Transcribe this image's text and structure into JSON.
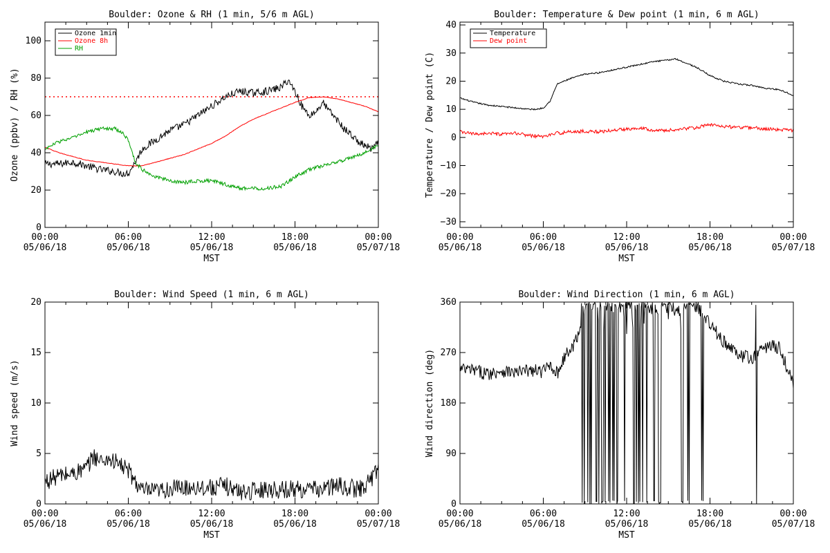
{
  "figure_title": "",
  "chart_data": [
    {
      "id": "ozone-rh",
      "type": "line",
      "title": "Boulder: Ozone & RH (1 min, 5/6 m AGL)",
      "xlabel": "MST",
      "ylabel": "Ozone (ppbv) / RH (%)",
      "ylim": [
        0,
        110
      ],
      "yticks": [
        0,
        20,
        40,
        60,
        80,
        100
      ],
      "ytick_labels": [
        "0",
        "20",
        "40",
        "60",
        "80",
        "100"
      ],
      "xlim": [
        0,
        24
      ],
      "xticks": [
        0,
        6,
        12,
        18,
        24
      ],
      "xtick_labels": [
        [
          "00:00",
          "05/06/18"
        ],
        [
          "06:00",
          "05/06/18"
        ],
        [
          "12:00",
          "05/06/18"
        ],
        [
          "18:00",
          "05/06/18"
        ],
        [
          "00:00",
          "05/07/18"
        ]
      ],
      "x_minor_step": 1.5,
      "grid": false,
      "legend_position": "top-left",
      "reference_lines": [
        {
          "y": 70,
          "color": "#ff0000",
          "style": "dotted"
        }
      ],
      "series": [
        {
          "name": "Ozone 1min",
          "color": "#000000",
          "x": [
            0,
            1,
            2,
            3,
            4,
            5,
            5.5,
            6,
            6.5,
            7,
            8,
            9,
            10,
            11,
            12,
            13,
            14,
            15,
            16,
            17,
            17.5,
            18,
            18.5,
            19,
            19.5,
            20,
            20.5,
            21,
            21.5,
            22,
            22.5,
            23,
            23.5,
            24
          ],
          "y": [
            34,
            34,
            35,
            33,
            31,
            30,
            29,
            29,
            35,
            42,
            47,
            52,
            55,
            60,
            65,
            70,
            73,
            72,
            73,
            75,
            79,
            73,
            65,
            60,
            62,
            67,
            62,
            58,
            53,
            50,
            46,
            44,
            42,
            45
          ]
        },
        {
          "name": "Ozone 8h",
          "color": "#ff0000",
          "x": [
            0,
            1,
            2,
            3,
            4,
            5,
            6,
            7,
            8,
            9,
            10,
            11,
            12,
            13,
            14,
            15,
            16,
            17,
            18,
            19,
            20,
            21,
            22,
            23,
            24
          ],
          "y": [
            43,
            40,
            38,
            36,
            35,
            34,
            33,
            33,
            35,
            37,
            39,
            42,
            45,
            49,
            54,
            58,
            61,
            64,
            67,
            69.5,
            70,
            69,
            67,
            65,
            62
          ]
        },
        {
          "name": "RH",
          "color": "#00a000",
          "x": [
            0,
            1,
            2,
            3,
            4,
            5,
            5.5,
            6,
            6.5,
            7,
            8,
            9,
            10,
            11,
            12,
            13,
            14,
            15,
            16,
            17,
            18,
            19,
            20,
            21,
            22,
            23,
            24
          ],
          "y": [
            42,
            46,
            48,
            51,
            53,
            53,
            51,
            47,
            35,
            31,
            27,
            25,
            24,
            25,
            25,
            23,
            21,
            21,
            21,
            22,
            27,
            31,
            33,
            35,
            37,
            40,
            44
          ]
        }
      ]
    },
    {
      "id": "temp-dew",
      "type": "line",
      "title": "Boulder: Temperature & Dew point (1 min, 6 m AGL)",
      "xlabel": "MST",
      "ylabel": "Temperature / Dew point (C)",
      "ylim": [
        -32,
        41
      ],
      "yticks": [
        -30,
        -20,
        -10,
        0,
        10,
        20,
        30,
        40
      ],
      "ytick_labels": [
        "−30",
        "−20",
        "−10",
        "0",
        "10",
        "20",
        "30",
        "40"
      ],
      "xlim": [
        0,
        24
      ],
      "xticks": [
        0,
        6,
        12,
        18,
        24
      ],
      "xtick_labels": [
        [
          "00:00",
          "05/06/18"
        ],
        [
          "06:00",
          "05/06/18"
        ],
        [
          "12:00",
          "05/06/18"
        ],
        [
          "18:00",
          "05/06/18"
        ],
        [
          "00:00",
          "05/07/18"
        ]
      ],
      "x_minor_step": 1.5,
      "grid": false,
      "legend_position": "top-left",
      "series": [
        {
          "name": "Temperature",
          "color": "#000000",
          "x": [
            0,
            1,
            2,
            3,
            4,
            5,
            5.5,
            6,
            6.5,
            7,
            8,
            9,
            10,
            11,
            12,
            13,
            14,
            15,
            15.5,
            16,
            17,
            18,
            19,
            20,
            21,
            22,
            23,
            24
          ],
          "y": [
            14,
            12.5,
            11.5,
            11,
            10.5,
            10,
            10,
            10.5,
            13,
            19,
            21,
            22.5,
            23,
            24,
            25,
            26,
            27,
            27.5,
            28,
            27,
            25,
            22,
            20,
            19,
            18.5,
            17.5,
            17,
            15
          ]
        },
        {
          "name": "Dew point",
          "color": "#ff0000",
          "x": [
            0,
            1,
            2,
            3,
            4,
            5,
            6,
            7,
            8,
            9,
            10,
            11,
            12,
            13,
            14,
            15,
            16,
            17,
            18,
            19,
            20,
            21,
            22,
            23,
            24
          ],
          "y": [
            2,
            1.2,
            1.5,
            1,
            1.5,
            0.7,
            0.3,
            1.5,
            2,
            2.2,
            2,
            2.5,
            3,
            3.5,
            2.5,
            2.5,
            3,
            3.5,
            4.5,
            4,
            3.5,
            3.5,
            3,
            2.8,
            2.5
          ]
        }
      ]
    },
    {
      "id": "wind-speed",
      "type": "line",
      "title": "Boulder: Wind Speed (1 min, 6 m AGL)",
      "xlabel": "MST",
      "ylabel": "Wind speed (m/s)",
      "ylim": [
        0,
        20
      ],
      "yticks": [
        0,
        5,
        10,
        15,
        20
      ],
      "ytick_labels": [
        "0",
        "5",
        "10",
        "15",
        "20"
      ],
      "xlim": [
        0,
        24
      ],
      "xticks": [
        0,
        6,
        12,
        18,
        24
      ],
      "xtick_labels": [
        [
          "00:00",
          "05/06/18"
        ],
        [
          "06:00",
          "05/06/18"
        ],
        [
          "12:00",
          "05/06/18"
        ],
        [
          "18:00",
          "05/06/18"
        ],
        [
          "00:00",
          "05/07/18"
        ]
      ],
      "x_minor_step": 1.5,
      "grid": false,
      "series": [
        {
          "name": "",
          "color": "#000000",
          "x": [
            0,
            1,
            2,
            3,
            3.5,
            4,
            4.5,
            5,
            5.5,
            6,
            6.5,
            7,
            8,
            9,
            10,
            11,
            12,
            13,
            14,
            15,
            16,
            17,
            18,
            19,
            20,
            21,
            22,
            22.5,
            23,
            23.5,
            24
          ],
          "y": [
            2.2,
            2.8,
            3,
            3.5,
            4.8,
            4.2,
            4.5,
            4.2,
            3.8,
            3.3,
            2.2,
            1.3,
            1.2,
            1.5,
            1.6,
            1.7,
            1.6,
            1.8,
            1.2,
            1.3,
            1.5,
            1.4,
            1.5,
            1.4,
            1.5,
            1.8,
            1.6,
            1.4,
            1.8,
            2.5,
            3.6
          ]
        }
      ]
    },
    {
      "id": "wind-direction",
      "type": "line",
      "title": "Boulder: Wind Direction (1 min, 6 m AGL)",
      "xlabel": "MST",
      "ylabel": "Wind direction (deg)",
      "ylim": [
        0,
        360
      ],
      "yticks": [
        0,
        90,
        180,
        270,
        360
      ],
      "ytick_labels": [
        "0",
        "90",
        "180",
        "270",
        "360"
      ],
      "xlim": [
        0,
        24
      ],
      "xticks": [
        0,
        6,
        12,
        18,
        24
      ],
      "xtick_labels": [
        [
          "00:00",
          "05/06/18"
        ],
        [
          "06:00",
          "05/06/18"
        ],
        [
          "12:00",
          "05/06/18"
        ],
        [
          "18:00",
          "05/06/18"
        ],
        [
          "00:00",
          "05/07/18"
        ]
      ],
      "x_minor_step": 1.5,
      "grid": false,
      "series": [
        {
          "name": "",
          "color": "#000000",
          "x": [
            0,
            1,
            2,
            3,
            4,
            5,
            6,
            6.5,
            7,
            7.5,
            8,
            8.5,
            9,
            10,
            11,
            12,
            13,
            14,
            15,
            16,
            17,
            18,
            19,
            20,
            21,
            21.5,
            22,
            22.5,
            23,
            23.5,
            24
          ],
          "y": [
            240,
            238,
            232,
            238,
            234,
            238,
            236,
            250,
            232,
            262,
            275,
            300,
            350,
            355,
            350,
            355,
            352,
            345,
            350,
            345,
            350,
            320,
            290,
            265,
            260,
            270,
            280,
            282,
            278,
            245,
            215
          ]
        }
      ]
    }
  ]
}
